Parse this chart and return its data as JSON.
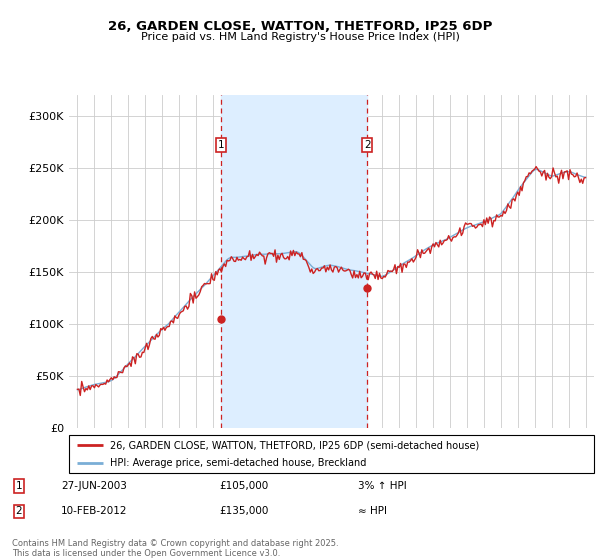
{
  "title": "26, GARDEN CLOSE, WATTON, THETFORD, IP25 6DP",
  "subtitle": "Price paid vs. HM Land Registry's House Price Index (HPI)",
  "legend_line1": "26, GARDEN CLOSE, WATTON, THETFORD, IP25 6DP (semi-detached house)",
  "legend_line2": "HPI: Average price, semi-detached house, Breckland",
  "annotation1_date": "27-JUN-2003",
  "annotation1_price": 105000,
  "annotation1_note": "3% ↑ HPI",
  "annotation2_date": "10-FEB-2012",
  "annotation2_price": 135000,
  "annotation2_note": "≈ HPI",
  "footnote": "Contains HM Land Registry data © Crown copyright and database right 2025.\nThis data is licensed under the Open Government Licence v3.0.",
  "marker1_x": 2003.49,
  "marker2_x": 2012.11,
  "shade_x1": 2003.49,
  "shade_x2": 2012.11,
  "hpi_color": "#7aaed6",
  "price_color": "#cc2222",
  "shade_color": "#ddeeff",
  "background_color": "#ffffff",
  "ylim": [
    0,
    320000
  ],
  "xlim": [
    1994.5,
    2025.5
  ],
  "yticks": [
    0,
    50000,
    100000,
    150000,
    200000,
    250000,
    300000
  ],
  "ytick_labels": [
    "£0",
    "£50K",
    "£100K",
    "£150K",
    "£200K",
    "£250K",
    "£300K"
  ]
}
